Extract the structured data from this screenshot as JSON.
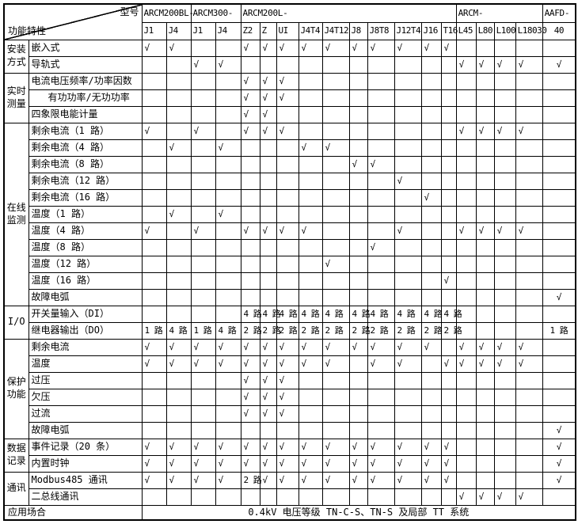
{
  "corner": {
    "model_label": "型号",
    "feature_label": "功能特性"
  },
  "column_groups": [
    {
      "label": "ARCM200BL-",
      "models": [
        "J1",
        "J4"
      ]
    },
    {
      "label": "ARCM300-",
      "models": [
        "J1",
        "J4"
      ]
    },
    {
      "label": "ARCM200L-",
      "models": [
        "Z2",
        "Z",
        "UI",
        "J4T4",
        "J4T12",
        "J8",
        "J8T8",
        "J12T4",
        "J16",
        "T16"
      ]
    },
    {
      "label": "ARCM-",
      "models": [
        "L45",
        "L80",
        "L100",
        "L18030"
      ]
    },
    {
      "label": "AAFD-",
      "models": [
        "40"
      ]
    }
  ],
  "symbols": {
    "check": "√"
  },
  "row_groups": [
    {
      "label": "安装\n方式",
      "rows": [
        {
          "feature": "嵌入式",
          "cells": [
            "√",
            "√",
            "",
            "",
            "√",
            "√",
            "√",
            "√",
            "√",
            "√",
            "√",
            "√",
            "√",
            "√",
            "",
            "",
            "",
            "",
            ""
          ]
        },
        {
          "feature": "导轨式",
          "cells": [
            "",
            "",
            "√",
            "√",
            "",
            "",
            "",
            "",
            "",
            "",
            "",
            "",
            "",
            "",
            "√",
            "√",
            "√",
            "√",
            "√"
          ]
        }
      ]
    },
    {
      "label": "实时\n测量",
      "rows": [
        {
          "feature": "电流电压频率/功率因数",
          "cells": [
            "",
            "",
            "",
            "",
            "√",
            "√",
            "√",
            "",
            "",
            "",
            "",
            "",
            "",
            "",
            "",
            "",
            "",
            "",
            ""
          ]
        },
        {
          "feature": "有功功率/无功功率",
          "indent": true,
          "cells": [
            "",
            "",
            "",
            "",
            "√",
            "√",
            "√",
            "",
            "",
            "",
            "",
            "",
            "",
            "",
            "",
            "",
            "",
            "",
            ""
          ]
        },
        {
          "feature": "四象限电能计量",
          "cells": [
            "",
            "",
            "",
            "",
            "√",
            "√",
            "",
            "",
            "",
            "",
            "",
            "",
            "",
            "",
            "",
            "",
            "",
            "",
            ""
          ]
        }
      ]
    },
    {
      "label": "在线\n监测",
      "rows": [
        {
          "feature": "剩余电流（1 路）",
          "cells": [
            "√",
            "",
            "√",
            "",
            "√",
            "√",
            "√",
            "",
            "",
            "",
            "",
            "",
            "",
            "",
            "√",
            "√",
            "√",
            "√",
            ""
          ]
        },
        {
          "feature": "剩余电流（4 路）",
          "cells": [
            "",
            "√",
            "",
            "√",
            "",
            "",
            "",
            "√",
            "√",
            "",
            "",
            "",
            "",
            "",
            "",
            "",
            "",
            "",
            ""
          ]
        },
        {
          "feature": "剩余电流（8 路）",
          "cells": [
            "",
            "",
            "",
            "",
            "",
            "",
            "",
            "",
            "",
            "√",
            "√",
            "",
            "",
            "",
            "",
            "",
            "",
            "",
            ""
          ]
        },
        {
          "feature": "剩余电流（12 路）",
          "cells": [
            "",
            "",
            "",
            "",
            "",
            "",
            "",
            "",
            "",
            "",
            "",
            "√",
            "",
            "",
            "",
            "",
            "",
            "",
            ""
          ]
        },
        {
          "feature": "剩余电流（16 路）",
          "cells": [
            "",
            "",
            "",
            "",
            "",
            "",
            "",
            "",
            "",
            "",
            "",
            "",
            "√",
            "",
            "",
            "",
            "",
            "",
            ""
          ]
        },
        {
          "feature": "温度（1 路）",
          "cells": [
            "",
            "√",
            "",
            "√",
            "",
            "",
            "",
            "",
            "",
            "",
            "",
            "",
            "",
            "",
            "",
            "",
            "",
            "",
            ""
          ]
        },
        {
          "feature": "温度（4 路）",
          "cells": [
            "√",
            "",
            "√",
            "",
            "√",
            "√",
            "√",
            "√",
            "",
            "",
            "",
            "√",
            "",
            "",
            "√",
            "√",
            "√",
            "√",
            ""
          ]
        },
        {
          "feature": "温度（8 路）",
          "cells": [
            "",
            "",
            "",
            "",
            "",
            "",
            "",
            "",
            "",
            "",
            "√",
            "",
            "",
            "",
            "",
            "",
            "",
            "",
            ""
          ]
        },
        {
          "feature": "温度（12 路）",
          "cells": [
            "",
            "",
            "",
            "",
            "",
            "",
            "",
            "",
            "√",
            "",
            "",
            "",
            "",
            "",
            "",
            "",
            "",
            "",
            ""
          ]
        },
        {
          "feature": "温度（16 路）",
          "cells": [
            "",
            "",
            "",
            "",
            "",
            "",
            "",
            "",
            "",
            "",
            "",
            "",
            "",
            "√",
            "",
            "",
            "",
            "",
            ""
          ]
        },
        {
          "feature": "故障电弧",
          "cells": [
            "",
            "",
            "",
            "",
            "",
            "",
            "",
            "",
            "",
            "",
            "",
            "",
            "",
            "",
            "",
            "",
            "",
            "",
            "√"
          ]
        }
      ]
    },
    {
      "label": "I/O",
      "rows": [
        {
          "feature": "开关量输入（DI）",
          "cells": [
            "",
            "",
            "",
            "",
            "4 路",
            "4 路",
            "4 路",
            "4 路",
            "4 路",
            "4 路",
            "4 路",
            "4 路",
            "4 路",
            "4 路",
            "",
            "",
            "",
            "",
            ""
          ]
        },
        {
          "feature": "继电器输出（DO）",
          "cells": [
            "1 路",
            "4 路",
            "1 路",
            "4 路",
            "2 路",
            "2 路",
            "2 路",
            "2 路",
            "2 路",
            "2 路",
            "2 路",
            "2 路",
            "2 路",
            "2 路",
            "",
            "",
            "",
            "",
            "1 路"
          ]
        }
      ]
    },
    {
      "label": "保护\n功能",
      "rows": [
        {
          "feature": "剩余电流",
          "cells": [
            "√",
            "√",
            "√",
            "√",
            "√",
            "√",
            "√",
            "√",
            "√",
            "√",
            "√",
            "√",
            "√",
            "",
            "√",
            "√",
            "√",
            "√",
            ""
          ]
        },
        {
          "feature": "温度",
          "cells": [
            "√",
            "√",
            "√",
            "√",
            "√",
            "√",
            "√",
            "√",
            "√",
            "",
            "√",
            "√",
            "",
            "√",
            "√",
            "√",
            "√",
            "√",
            ""
          ]
        },
        {
          "feature": "过压",
          "cells": [
            "",
            "",
            "",
            "",
            "√",
            "√",
            "√",
            "",
            "",
            "",
            "",
            "",
            "",
            "",
            "",
            "",
            "",
            "",
            ""
          ]
        },
        {
          "feature": "欠压",
          "cells": [
            "",
            "",
            "",
            "",
            "√",
            "√",
            "√",
            "",
            "",
            "",
            "",
            "",
            "",
            "",
            "",
            "",
            "",
            "",
            ""
          ]
        },
        {
          "feature": "过流",
          "cells": [
            "",
            "",
            "",
            "",
            "√",
            "√",
            "√",
            "",
            "",
            "",
            "",
            "",
            "",
            "",
            "",
            "",
            "",
            "",
            ""
          ]
        },
        {
          "feature": "故障电弧",
          "cells": [
            "",
            "",
            "",
            "",
            "",
            "",
            "",
            "",
            "",
            "",
            "",
            "",
            "",
            "",
            "",
            "",
            "",
            "",
            "√"
          ]
        }
      ]
    },
    {
      "label": "数据\n记录",
      "rows": [
        {
          "feature": "事件记录（20 条）",
          "cells": [
            "√",
            "√",
            "√",
            "√",
            "√",
            "√",
            "√",
            "√",
            "√",
            "√",
            "√",
            "√",
            "√",
            "√",
            "",
            "",
            "",
            "",
            "√"
          ]
        },
        {
          "feature": "内置时钟",
          "cells": [
            "√",
            "√",
            "√",
            "√",
            "√",
            "√",
            "√",
            "√",
            "√",
            "√",
            "√",
            "√",
            "√",
            "√",
            "",
            "",
            "",
            "",
            "√"
          ]
        }
      ]
    },
    {
      "label": "通讯",
      "rows": [
        {
          "feature": "Modbus485 通讯",
          "cells": [
            "√",
            "√",
            "√",
            "√",
            "2 路",
            "√",
            "√",
            "√",
            "√",
            "√",
            "√",
            "√",
            "√",
            "√",
            "",
            "",
            "",
            "",
            "√"
          ]
        },
        {
          "feature": "二总线通讯",
          "cells": [
            "",
            "",
            "",
            "",
            "",
            "",
            "",
            "",
            "",
            "",
            "",
            "",
            "",
            "",
            "√",
            "√",
            "√",
            "√",
            ""
          ]
        }
      ]
    }
  ],
  "footer": {
    "label": "应用场合",
    "value": "0.4kV 电压等级 TN-C-S、TN-S 及局部 TT 系统"
  }
}
